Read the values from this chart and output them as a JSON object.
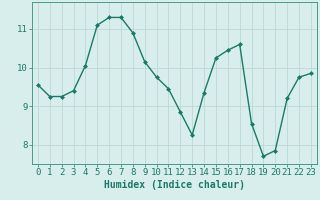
{
  "x": [
    0,
    1,
    2,
    3,
    4,
    5,
    6,
    7,
    8,
    9,
    10,
    11,
    12,
    13,
    14,
    15,
    16,
    17,
    18,
    19,
    20,
    21,
    22,
    23
  ],
  "y": [
    9.55,
    9.25,
    9.25,
    9.4,
    10.05,
    11.1,
    11.3,
    11.3,
    10.9,
    10.15,
    9.75,
    9.45,
    8.85,
    8.25,
    9.35,
    10.25,
    10.45,
    10.6,
    8.55,
    7.7,
    7.85,
    9.2,
    9.75,
    9.85
  ],
  "line_color": "#1a7a6a",
  "marker": "D",
  "marker_size": 2.0,
  "line_width": 1.0,
  "xlabel": "Humidex (Indice chaleur)",
  "xlabel_fontsize": 7,
  "background_color": "#d8eeec",
  "grid_color": "#c0d8d4",
  "tick_color": "#1a7a6a",
  "spine_color": "#4a9a8a",
  "ylim": [
    7.5,
    11.7
  ],
  "xlim": [
    -0.5,
    23.5
  ],
  "yticks": [
    8,
    9,
    10,
    11
  ],
  "xticks": [
    0,
    1,
    2,
    3,
    4,
    5,
    6,
    7,
    8,
    9,
    10,
    11,
    12,
    13,
    14,
    15,
    16,
    17,
    18,
    19,
    20,
    21,
    22,
    23
  ],
  "tick_fontsize": 6.5
}
